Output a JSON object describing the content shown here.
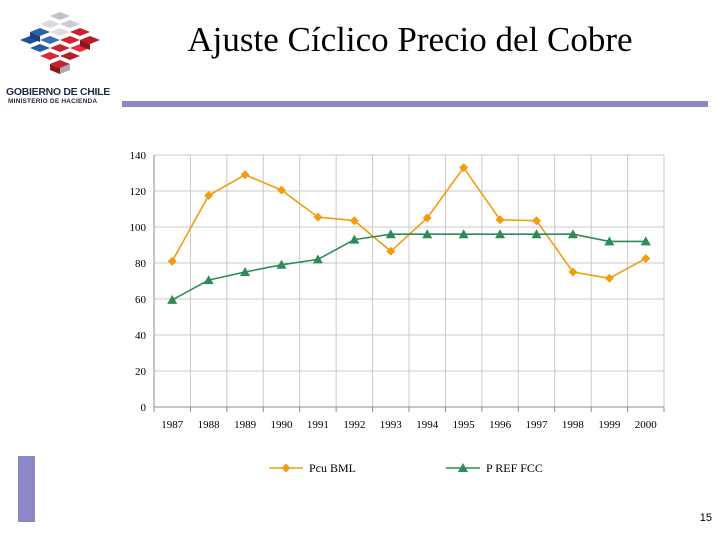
{
  "slide": {
    "title": "Ajuste Cíclico Precio del Cobre",
    "page_number": "15",
    "logo_name": "GOBIERNO DE CHILE",
    "logo_subtitle": "MINISTERIO DE HACIENDA",
    "accent_color": "#8b87c9"
  },
  "chart_data": {
    "type": "line",
    "title": "",
    "xlabel": "",
    "ylabel": "",
    "categories": [
      "1987",
      "1988",
      "1989",
      "1990",
      "1991",
      "1992",
      "1993",
      "1994",
      "1995",
      "1996",
      "1997",
      "1998",
      "1999",
      "2000"
    ],
    "ylim": [
      0,
      140
    ],
    "yticks": [
      0,
      20,
      40,
      60,
      80,
      100,
      120,
      140
    ],
    "grid": true,
    "legend_position": "bottom",
    "series": [
      {
        "name": "Pcu BML",
        "color": "#f39c12",
        "marker": "diamond",
        "values": [
          81,
          117.5,
          129,
          120.5,
          105.5,
          103.5,
          86.5,
          105,
          133,
          104,
          103.5,
          75,
          71.5,
          82.5
        ]
      },
      {
        "name": "P REF FCC",
        "color": "#2e8b57",
        "marker": "triangle",
        "values": [
          59.5,
          70.5,
          75,
          79,
          82,
          93,
          96,
          96,
          96,
          96,
          96,
          96,
          92,
          92
        ]
      }
    ]
  }
}
